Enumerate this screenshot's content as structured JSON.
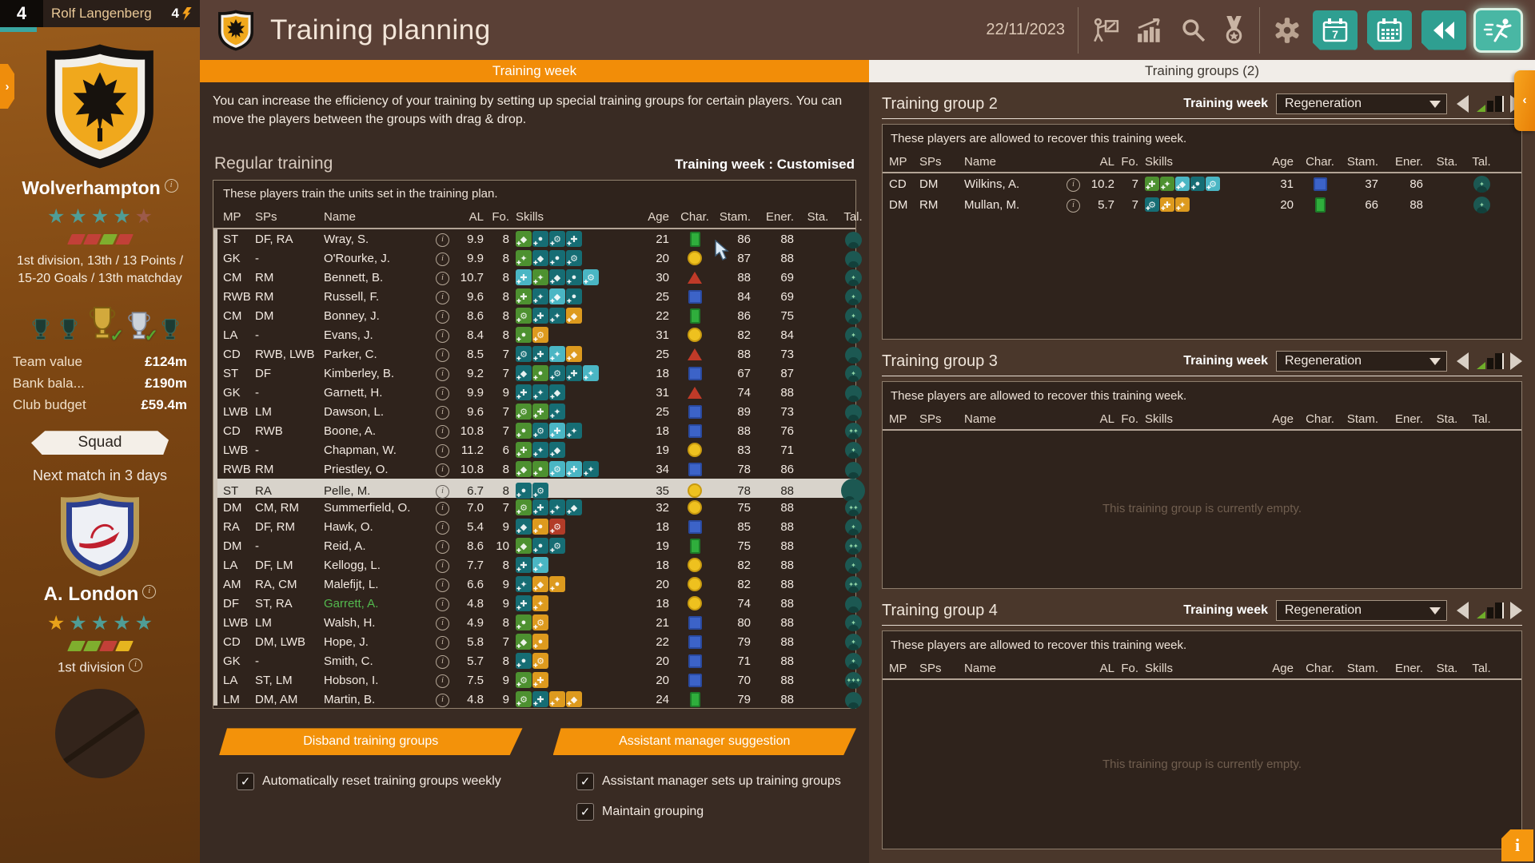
{
  "colors": {
    "accent_orange": "#f3920a",
    "teal_button": "#2fa092",
    "selected_row": "#d8d3cb",
    "player_green": "#53b94e",
    "star_teal": "#4f9d96",
    "star_gold": "#e8a21a"
  },
  "topbar": {
    "number": "4",
    "manager": "Rolf Langenberg",
    "energy": "4"
  },
  "sidebar": {
    "club": {
      "name": "Wolverhampton",
      "stars": [
        "teal",
        "teal",
        "teal",
        "teal",
        "muted"
      ],
      "form": [
        "red",
        "red",
        "green",
        "red"
      ],
      "division_text": "1st division, 13th / 13 Points / 15-20 Goals / 13th matchday",
      "trophies": [
        {
          "style": "dark",
          "check": false
        },
        {
          "style": "dark",
          "check": false
        },
        {
          "style": "gold",
          "check": true
        },
        {
          "style": "silver",
          "check": true
        },
        {
          "style": "dark",
          "check": false
        }
      ]
    },
    "finance": [
      {
        "label": "Team value",
        "value": "£124m"
      },
      {
        "label": "Bank bala...",
        "value": "£190m"
      },
      {
        "label": "Club budget",
        "value": "£59.4m"
      }
    ],
    "squad_button": "Squad",
    "next_match": "Next match in 3 days",
    "opponent": {
      "name": "A. London",
      "stars": [
        "gold",
        "teal",
        "teal",
        "teal",
        "teal"
      ],
      "form": [
        "green",
        "green",
        "red",
        "yellow"
      ],
      "division": "1st division"
    }
  },
  "header": {
    "title": "Training planning",
    "date": "22/11/2023",
    "icons": [
      "presenter-icon",
      "stats-icon",
      "search-icon",
      "medal-icon",
      "gear-icon"
    ],
    "buttons": [
      "calendar-week-button",
      "calendar-month-button",
      "rewind-button",
      "continue-button"
    ]
  },
  "tabs": {
    "left": "Training week",
    "right": "Training groups (2)"
  },
  "main": {
    "intro": "You can increase the efficiency of your training by setting up special training groups for certain players. You can move the players between the groups with drag & drop.",
    "section_title": "Regular training",
    "week_label": "Training week : Customised",
    "table_note": "These players train the units set in the training plan.",
    "columns": [
      "MP",
      "SPs",
      "Name",
      "AL",
      "Fo.",
      "Skills",
      "Age",
      "Char.",
      "Stam.",
      "Ener.",
      "Sta.",
      "Tal."
    ],
    "players": [
      {
        "mp": "ST",
        "sps": "DF, RA",
        "name": "Wray, S.",
        "al": "9.9",
        "fo": "8",
        "skills": [
          "g",
          "t",
          "t",
          "t"
        ],
        "age": "21",
        "char": "green-rect",
        "stam": "86",
        "ener": "88",
        "tal": 0
      },
      {
        "mp": "GK",
        "sps": "-",
        "name": "O'Rourke, J.",
        "al": "9.9",
        "fo": "8",
        "skills": [
          "g",
          "t",
          "t",
          "t"
        ],
        "age": "20",
        "char": "yellow-circle",
        "stam": "87",
        "ener": "88",
        "tal": 0
      },
      {
        "mp": "CM",
        "sps": "RM",
        "name": "Bennett, B.",
        "al": "10.7",
        "fo": "8",
        "skills": [
          "c",
          "g",
          "t",
          "t",
          "c"
        ],
        "age": "30",
        "char": "red-triangle",
        "stam": "88",
        "ener": "69",
        "tal": 1
      },
      {
        "mp": "RWB",
        "sps": "RM",
        "name": "Russell, F.",
        "al": "9.6",
        "fo": "8",
        "skills": [
          "g",
          "t",
          "c",
          "t"
        ],
        "age": "25",
        "char": "blue-square",
        "stam": "84",
        "ener": "69",
        "tal": 1
      },
      {
        "mp": "CM",
        "sps": "DM",
        "name": "Bonney, J.",
        "al": "8.6",
        "fo": "8",
        "skills": [
          "g",
          "t",
          "t",
          "o"
        ],
        "age": "22",
        "char": "green-rect",
        "stam": "86",
        "ener": "75",
        "tal": 1
      },
      {
        "mp": "LA",
        "sps": "-",
        "name": "Evans, J.",
        "al": "8.4",
        "fo": "8",
        "skills": [
          "g",
          "o"
        ],
        "age": "31",
        "char": "yellow-circle",
        "stam": "82",
        "ener": "84",
        "tal": 1
      },
      {
        "mp": "CD",
        "sps": "RWB, LWB",
        "name": "Parker, C.",
        "al": "8.5",
        "fo": "7",
        "skills": [
          "t",
          "t",
          "c",
          "o"
        ],
        "age": "25",
        "char": "red-triangle",
        "stam": "88",
        "ener": "73",
        "tal": 0
      },
      {
        "mp": "ST",
        "sps": "DF",
        "name": "Kimberley, B.",
        "al": "9.2",
        "fo": "7",
        "skills": [
          "t",
          "g",
          "t",
          "t",
          "c"
        ],
        "age": "18",
        "char": "blue-square",
        "stam": "67",
        "ener": "87",
        "tal": 1
      },
      {
        "mp": "GK",
        "sps": "-",
        "name": "Garnett, H.",
        "al": "9.9",
        "fo": "9",
        "skills": [
          "t",
          "t",
          "t"
        ],
        "age": "31",
        "char": "red-triangle",
        "stam": "74",
        "ener": "88",
        "tal": 0
      },
      {
        "mp": "LWB",
        "sps": "LM",
        "name": "Dawson, L.",
        "al": "9.6",
        "fo": "7",
        "skills": [
          "g",
          "g",
          "t"
        ],
        "age": "25",
        "char": "blue-square",
        "stam": "89",
        "ener": "73",
        "tal": 0
      },
      {
        "mp": "CD",
        "sps": "RWB",
        "name": "Boone, A.",
        "al": "10.8",
        "fo": "7",
        "skills": [
          "g",
          "t",
          "c",
          "t"
        ],
        "age": "18",
        "char": "blue-square",
        "stam": "88",
        "ener": "76",
        "tal": 2
      },
      {
        "mp": "LWB",
        "sps": "-",
        "name": "Chapman, W.",
        "al": "11.2",
        "fo": "6",
        "skills": [
          "g",
          "t",
          "t"
        ],
        "age": "19",
        "char": "yellow-circle",
        "stam": "83",
        "ener": "71",
        "tal": 1
      },
      {
        "mp": "RWB",
        "sps": "RM",
        "name": "Priestley, O.",
        "al": "10.8",
        "fo": "8",
        "skills": [
          "g",
          "g",
          "c",
          "c",
          "t"
        ],
        "age": "34",
        "char": "blue-square",
        "stam": "78",
        "ener": "86",
        "tal": 0
      },
      {
        "mp": "ST",
        "sps": "RA",
        "name": "Pelle, M.",
        "al": "6.7",
        "fo": "8",
        "skills": [
          "t",
          "t"
        ],
        "age": "35",
        "char": "yellow-circle",
        "stam": "78",
        "ener": "88",
        "tal": 0,
        "selected": true
      },
      {
        "mp": "DM",
        "sps": "CM, RM",
        "name": "Summerfield, O.",
        "al": "7.0",
        "fo": "7",
        "skills": [
          "g",
          "t",
          "t",
          "t"
        ],
        "age": "32",
        "char": "yellow-circle",
        "stam": "75",
        "ener": "88",
        "tal": 2
      },
      {
        "mp": "RA",
        "sps": "DF, RM",
        "name": "Hawk, O.",
        "al": "5.4",
        "fo": "9",
        "skills": [
          "t",
          "o",
          "r"
        ],
        "age": "18",
        "char": "blue-square",
        "stam": "85",
        "ener": "88",
        "tal": 1
      },
      {
        "mp": "DM",
        "sps": "-",
        "name": "Reid, A.",
        "al": "8.6",
        "fo": "10",
        "skills": [
          "g",
          "t",
          "t"
        ],
        "age": "19",
        "char": "green-rect",
        "stam": "75",
        "ener": "88",
        "tal": 2
      },
      {
        "mp": "LA",
        "sps": "DF, LM",
        "name": "Kellogg, L.",
        "al": "7.7",
        "fo": "8",
        "skills": [
          "t",
          "c"
        ],
        "age": "18",
        "char": "yellow-circle",
        "stam": "82",
        "ener": "88",
        "tal": 1
      },
      {
        "mp": "AM",
        "sps": "RA, CM",
        "name": "Malefijt, L.",
        "al": "6.6",
        "fo": "9",
        "skills": [
          "t",
          "o",
          "o"
        ],
        "age": "20",
        "char": "yellow-circle",
        "stam": "82",
        "ener": "88",
        "tal": 2
      },
      {
        "mp": "DF",
        "sps": "ST, RA",
        "name": "Garrett, A.",
        "al": "4.8",
        "fo": "9",
        "skills": [
          "t",
          "o"
        ],
        "age": "18",
        "char": "yellow-circle",
        "stam": "74",
        "ener": "88",
        "tal": 0,
        "green": true
      },
      {
        "mp": "LWB",
        "sps": "LM",
        "name": "Walsh, H.",
        "al": "4.9",
        "fo": "8",
        "skills": [
          "g",
          "o"
        ],
        "age": "21",
        "char": "blue-square",
        "stam": "80",
        "ener": "88",
        "tal": 1
      },
      {
        "mp": "CD",
        "sps": "DM, LWB",
        "name": "Hope, J.",
        "al": "5.8",
        "fo": "7",
        "skills": [
          "g",
          "o"
        ],
        "age": "22",
        "char": "blue-square",
        "stam": "79",
        "ener": "88",
        "tal": 1
      },
      {
        "mp": "GK",
        "sps": "-",
        "name": "Smith, C.",
        "al": "5.7",
        "fo": "8",
        "skills": [
          "t",
          "o"
        ],
        "age": "20",
        "char": "blue-square",
        "stam": "71",
        "ener": "88",
        "tal": 1
      },
      {
        "mp": "LA",
        "sps": "ST, LM",
        "name": "Hobson, I.",
        "al": "7.5",
        "fo": "9",
        "skills": [
          "g",
          "o"
        ],
        "age": "20",
        "char": "blue-square",
        "stam": "70",
        "ener": "88",
        "tal": 3
      },
      {
        "mp": "LM",
        "sps": "DM, AM",
        "name": "Martin, B.",
        "al": "4.8",
        "fo": "9",
        "skills": [
          "g",
          "t",
          "o",
          "o"
        ],
        "age": "24",
        "char": "green-rect",
        "stam": "79",
        "ener": "88",
        "tal": 0
      }
    ],
    "buttons": [
      "Disband training groups",
      "Assistant manager suggestion"
    ],
    "checkboxes": [
      "Automatically reset training groups weekly",
      "Assistant manager sets up training groups",
      "Maintain grouping"
    ]
  },
  "groups": [
    {
      "title": "Training group 2",
      "week_label": "Training week",
      "week_value": "Regeneration",
      "note": "These players are allowed to recover this training week.",
      "empty": "",
      "players": [
        {
          "mp": "CD",
          "sps": "DM",
          "name": "Wilkins, A.",
          "al": "10.2",
          "fo": "7",
          "skills": [
            "g",
            "g",
            "c",
            "t",
            "c"
          ],
          "age": "31",
          "char": "blue-square",
          "stam": "37",
          "ener": "86",
          "tal": 1
        },
        {
          "mp": "DM",
          "sps": "RM",
          "name": "Mullan, M.",
          "al": "5.7",
          "fo": "7",
          "skills": [
            "t",
            "o",
            "o"
          ],
          "age": "20",
          "char": "green-rect",
          "stam": "66",
          "ener": "88",
          "tal": 1
        }
      ]
    },
    {
      "title": "Training group 3",
      "week_label": "Training week",
      "week_value": "Regeneration",
      "note": "These players are allowed to recover this training week.",
      "empty": "This training group is currently empty.",
      "players": []
    },
    {
      "title": "Training group 4",
      "week_label": "Training week",
      "week_value": "Regeneration",
      "note": "These players are allowed to recover this training week.",
      "empty": "This training group is currently empty.",
      "players": []
    }
  ],
  "edges": {
    "left_tab": "›",
    "right_tab": "‹",
    "corner_info": "i",
    "check_glyph": "✓"
  }
}
